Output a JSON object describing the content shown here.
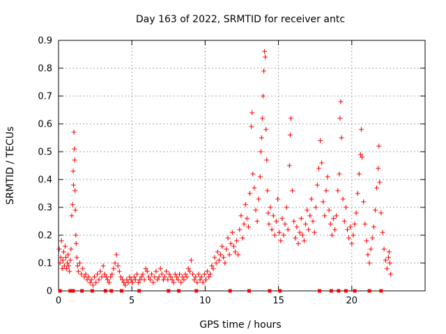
{
  "chart_data": {
    "type": "scatter",
    "title": "Day 163 of 2022, SRMTID for receiver antc",
    "xlabel": "GPS time / hours",
    "ylabel": "SRMTID / TECUs",
    "xlim": [
      0,
      25
    ],
    "ylim": [
      0,
      0.9
    ],
    "x_ticks": [
      0,
      5,
      10,
      15,
      20
    ],
    "y_ticks": [
      0,
      0.1,
      0.2,
      0.3,
      0.4,
      0.5,
      0.6,
      0.7,
      0.8,
      0.9
    ],
    "x_tick_labels": [
      "0",
      "5",
      "10",
      "15",
      "20"
    ],
    "y_tick_labels": [
      "0",
      "0.1",
      "0.2",
      "0.3",
      "0.4",
      "0.5",
      "0.6",
      "0.7",
      "0.8",
      "0.9"
    ],
    "grid": true,
    "marker": "plus",
    "series": [
      {
        "name": "SRMTID",
        "color": "#ff0000",
        "points": [
          [
            0.05,
            0.15
          ],
          [
            0.1,
            0.1
          ],
          [
            0.15,
            0.12
          ],
          [
            0.2,
            0.18
          ],
          [
            0.25,
            0.08
          ],
          [
            0.3,
            0.11
          ],
          [
            0.35,
            0.14
          ],
          [
            0.4,
            0.09
          ],
          [
            0.45,
            0.16
          ],
          [
            0.5,
            0.12
          ],
          [
            0.55,
            0.08
          ],
          [
            0.6,
            0.1
          ],
          [
            0.65,
            0.13
          ],
          [
            0.7,
            0.09
          ],
          [
            0.75,
            0.07
          ],
          [
            0.8,
            0.11
          ],
          [
            0.85,
            0.15
          ],
          [
            0.9,
            0.27
          ],
          [
            0.95,
            0.31
          ],
          [
            1.0,
            0.43
          ],
          [
            1.02,
            0.38
          ],
          [
            1.05,
            0.57
          ],
          [
            1.08,
            0.51
          ],
          [
            1.1,
            0.47
          ],
          [
            1.12,
            0.36
          ],
          [
            1.15,
            0.29
          ],
          [
            1.18,
            0.2
          ],
          [
            1.2,
            0.17
          ],
          [
            1.25,
            0.12
          ],
          [
            1.3,
            0.09
          ],
          [
            1.35,
            0.07
          ],
          [
            1.45,
            0.1
          ],
          [
            1.55,
            0.06
          ],
          [
            1.65,
            0.08
          ],
          [
            1.75,
            0.05
          ],
          [
            1.85,
            0.06
          ],
          [
            1.95,
            0.04
          ],
          [
            2.05,
            0.05
          ],
          [
            2.15,
            0.03
          ],
          [
            2.25,
            0.04
          ],
          [
            2.35,
            0.02
          ],
          [
            2.45,
            0.05
          ],
          [
            2.55,
            0.03
          ],
          [
            2.65,
            0.06
          ],
          [
            2.75,
            0.04
          ],
          [
            2.85,
            0.07
          ],
          [
            2.95,
            0.05
          ],
          [
            3.05,
            0.09
          ],
          [
            3.15,
            0.06
          ],
          [
            3.25,
            0.05
          ],
          [
            3.35,
            0.04
          ],
          [
            3.45,
            0.03
          ],
          [
            3.55,
            0.05
          ],
          [
            3.65,
            0.06
          ],
          [
            3.75,
            0.08
          ],
          [
            3.85,
            0.1
          ],
          [
            3.95,
            0.13
          ],
          [
            4.05,
            0.09
          ],
          [
            4.15,
            0.07
          ],
          [
            4.25,
            0.05
          ],
          [
            4.35,
            0.04
          ],
          [
            4.45,
            0.03
          ],
          [
            4.55,
            0.02
          ],
          [
            4.65,
            0.04
          ],
          [
            4.75,
            0.03
          ],
          [
            4.85,
            0.05
          ],
          [
            4.95,
            0.04
          ],
          [
            5.05,
            0.03
          ],
          [
            5.15,
            0.05
          ],
          [
            5.25,
            0.04
          ],
          [
            5.35,
            0.06
          ],
          [
            5.45,
            0.03
          ],
          [
            5.55,
            0.04
          ],
          [
            5.65,
            0.05
          ],
          [
            5.75,
            0.06
          ],
          [
            5.85,
            0.04
          ],
          [
            5.95,
            0.08
          ],
          [
            6.05,
            0.07
          ],
          [
            6.15,
            0.05
          ],
          [
            6.25,
            0.04
          ],
          [
            6.35,
            0.06
          ],
          [
            6.45,
            0.03
          ],
          [
            6.55,
            0.05
          ],
          [
            6.65,
            0.07
          ],
          [
            6.75,
            0.04
          ],
          [
            6.85,
            0.05
          ],
          [
            6.95,
            0.08
          ],
          [
            7.05,
            0.06
          ],
          [
            7.15,
            0.04
          ],
          [
            7.25,
            0.05
          ],
          [
            7.35,
            0.07
          ],
          [
            7.45,
            0.04
          ],
          [
            7.55,
            0.06
          ],
          [
            7.65,
            0.05
          ],
          [
            7.75,
            0.04
          ],
          [
            7.85,
            0.03
          ],
          [
            7.95,
            0.06
          ],
          [
            8.05,
            0.05
          ],
          [
            8.15,
            0.04
          ],
          [
            8.25,
            0.06
          ],
          [
            8.35,
            0.03
          ],
          [
            8.45,
            0.05
          ],
          [
            8.55,
            0.04
          ],
          [
            8.65,
            0.06
          ],
          [
            8.75,
            0.05
          ],
          [
            8.85,
            0.08
          ],
          [
            8.95,
            0.07
          ],
          [
            9.05,
            0.11
          ],
          [
            9.15,
            0.06
          ],
          [
            9.25,
            0.04
          ],
          [
            9.35,
            0.05
          ],
          [
            9.45,
            0.03
          ],
          [
            9.55,
            0.06
          ],
          [
            9.65,
            0.04
          ],
          [
            9.75,
            0.05
          ],
          [
            9.85,
            0.03
          ],
          [
            9.95,
            0.06
          ],
          [
            10.05,
            0.04
          ],
          [
            10.15,
            0.07
          ],
          [
            10.25,
            0.05
          ],
          [
            10.35,
            0.06
          ],
          [
            10.45,
            0.09
          ],
          [
            10.55,
            0.08
          ],
          [
            10.65,
            0.12
          ],
          [
            10.75,
            0.1
          ],
          [
            10.85,
            0.14
          ],
          [
            10.95,
            0.11
          ],
          [
            11.05,
            0.13
          ],
          [
            11.15,
            0.16
          ],
          [
            11.25,
            0.12
          ],
          [
            11.35,
            0.1
          ],
          [
            11.45,
            0.15
          ],
          [
            11.55,
            0.19
          ],
          [
            11.65,
            0.13
          ],
          [
            11.75,
            0.17
          ],
          [
            11.85,
            0.21
          ],
          [
            11.95,
            0.16
          ],
          [
            12.05,
            0.14
          ],
          [
            12.15,
            0.18
          ],
          [
            12.25,
            0.13
          ],
          [
            12.35,
            0.22
          ],
          [
            12.45,
            0.27
          ],
          [
            12.55,
            0.19
          ],
          [
            12.65,
            0.24
          ],
          [
            12.75,
            0.31
          ],
          [
            12.85,
            0.26
          ],
          [
            12.95,
            0.23
          ],
          [
            13.05,
            0.35
          ],
          [
            13.15,
            0.59
          ],
          [
            13.2,
            0.64
          ],
          [
            13.25,
            0.42
          ],
          [
            13.35,
            0.37
          ],
          [
            13.45,
            0.29
          ],
          [
            13.55,
            0.25
          ],
          [
            13.65,
            0.33
          ],
          [
            13.75,
            0.41
          ],
          [
            13.8,
            0.5
          ],
          [
            13.85,
            0.55
          ],
          [
            13.9,
            0.62
          ],
          [
            13.95,
            0.7
          ],
          [
            14.0,
            0.79
          ],
          [
            14.05,
            0.86
          ],
          [
            14.1,
            0.84
          ],
          [
            14.15,
            0.58
          ],
          [
            14.2,
            0.47
          ],
          [
            14.25,
            0.36
          ],
          [
            14.3,
            0.28
          ],
          [
            14.35,
            0.24
          ],
          [
            14.45,
            0.3
          ],
          [
            14.55,
            0.22
          ],
          [
            14.65,
            0.27
          ],
          [
            14.75,
            0.2
          ],
          [
            14.85,
            0.25
          ],
          [
            14.95,
            0.33
          ],
          [
            15.05,
            0.21
          ],
          [
            15.15,
            0.18
          ],
          [
            15.25,
            0.26
          ],
          [
            15.35,
            0.2
          ],
          [
            15.45,
            0.24
          ],
          [
            15.55,
            0.3
          ],
          [
            15.65,
            0.22
          ],
          [
            15.75,
            0.45
          ],
          [
            15.8,
            0.56
          ],
          [
            15.85,
            0.62
          ],
          [
            15.95,
            0.36
          ],
          [
            16.05,
            0.25
          ],
          [
            16.15,
            0.19
          ],
          [
            16.25,
            0.23
          ],
          [
            16.35,
            0.17
          ],
          [
            16.45,
            0.21
          ],
          [
            16.55,
            0.26
          ],
          [
            16.65,
            0.2
          ],
          [
            16.75,
            0.18
          ],
          [
            16.85,
            0.24
          ],
          [
            16.95,
            0.29
          ],
          [
            17.05,
            0.22
          ],
          [
            17.15,
            0.27
          ],
          [
            17.25,
            0.33
          ],
          [
            17.35,
            0.25
          ],
          [
            17.45,
            0.21
          ],
          [
            17.55,
            0.3
          ],
          [
            17.65,
            0.38
          ],
          [
            17.75,
            0.44
          ],
          [
            17.85,
            0.54
          ],
          [
            17.95,
            0.46
          ],
          [
            18.05,
            0.32
          ],
          [
            18.15,
            0.27
          ],
          [
            18.25,
            0.36
          ],
          [
            18.35,
            0.41
          ],
          [
            18.45,
            0.29
          ],
          [
            18.55,
            0.24
          ],
          [
            18.65,
            0.2
          ],
          [
            18.75,
            0.26
          ],
          [
            18.85,
            0.22
          ],
          [
            18.95,
            0.27
          ],
          [
            19.05,
            0.36
          ],
          [
            19.15,
            0.42
          ],
          [
            19.2,
            0.62
          ],
          [
            19.25,
            0.68
          ],
          [
            19.3,
            0.55
          ],
          [
            19.4,
            0.33
          ],
          [
            19.5,
            0.25
          ],
          [
            19.6,
            0.3
          ],
          [
            19.7,
            0.22
          ],
          [
            19.8,
            0.19
          ],
          [
            19.9,
            0.23
          ],
          [
            20.0,
            0.17
          ],
          [
            20.1,
            0.2
          ],
          [
            20.2,
            0.24
          ],
          [
            20.3,
            0.28
          ],
          [
            20.4,
            0.35
          ],
          [
            20.5,
            0.42
          ],
          [
            20.6,
            0.49
          ],
          [
            20.65,
            0.58
          ],
          [
            20.7,
            0.48
          ],
          [
            20.8,
            0.32
          ],
          [
            20.9,
            0.24
          ],
          [
            21.0,
            0.18
          ],
          [
            21.1,
            0.13
          ],
          [
            21.2,
            0.1
          ],
          [
            21.3,
            0.15
          ],
          [
            21.4,
            0.19
          ],
          [
            21.5,
            0.23
          ],
          [
            21.6,
            0.29
          ],
          [
            21.7,
            0.37
          ],
          [
            21.8,
            0.44
          ],
          [
            21.85,
            0.52
          ],
          [
            21.9,
            0.39
          ],
          [
            22.0,
            0.28
          ],
          [
            22.1,
            0.21
          ],
          [
            22.2,
            0.15
          ],
          [
            22.3,
            0.11
          ],
          [
            22.4,
            0.08
          ],
          [
            22.5,
            0.12
          ],
          [
            22.55,
            0.14
          ],
          [
            22.6,
            0.1
          ],
          [
            22.65,
            0.06
          ]
        ],
        "zero_markers": [
          0.1,
          0.8,
          1.0,
          1.6,
          2.3,
          3.2,
          3.6,
          4.3,
          5.5,
          7.5,
          8.2,
          9.4,
          11.7,
          13.0,
          14.4,
          15.1,
          17.8,
          18.6,
          19.1,
          19.6,
          20.2,
          21.2,
          22.0
        ]
      }
    ]
  }
}
